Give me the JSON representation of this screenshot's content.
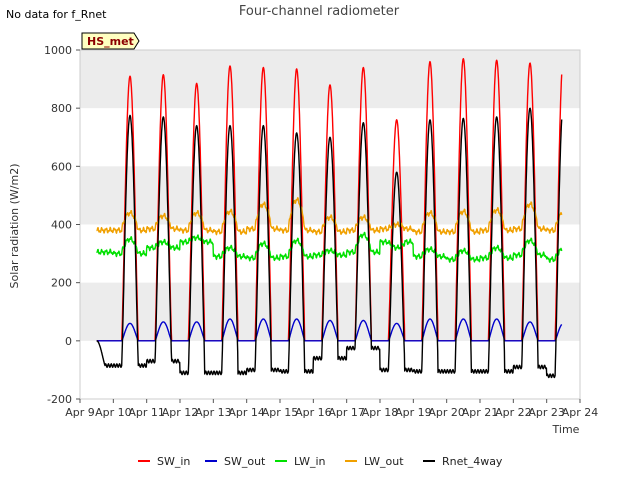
{
  "colors": {
    "SW_in": "#ff0000",
    "SW_out": "#0000cc",
    "LW_in": "#00e000",
    "LW_out": "#f0a000",
    "Rnet_4way": "#000000",
    "band": "#ececec",
    "badge_fill": "#ffffc0",
    "badge_text": "#8b0000"
  },
  "chart_data": {
    "type": "line",
    "title": "Four-channel radiometer",
    "note_top_left": "No data for f_Rnet",
    "badge": "HS_met",
    "xlabel": "Time",
    "ylabel": "Solar radiation (W/m2)",
    "xlim": [
      9,
      24
    ],
    "ylim": [
      -200,
      1000
    ],
    "x_tick_labels": [
      "Apr 9",
      "Apr 10",
      "Apr 11",
      "Apr 12",
      "Apr 13",
      "Apr 14",
      "Apr 15",
      "Apr 16",
      "Apr 17",
      "Apr 18",
      "Apr 19",
      "Apr 20",
      "Apr 21",
      "Apr 22",
      "Apr 23",
      "Apr 24"
    ],
    "y_ticks": [
      -200,
      0,
      200,
      400,
      600,
      800,
      1000
    ],
    "grid": true,
    "legend_position": "bottom",
    "days": [
      9.5,
      10.5,
      11.5,
      12.5,
      13.5,
      14.5,
      15.5,
      16.5,
      17.5,
      18.5,
      19.5,
      20.5,
      21.5,
      22.5,
      23.5
    ],
    "series": [
      {
        "name": "SW_in",
        "kind": "sw_in",
        "daily_peak": [
          0,
          910,
          915,
          885,
          945,
          940,
          935,
          880,
          940,
          760,
          960,
          970,
          965,
          955,
          975
        ],
        "night": 0
      },
      {
        "name": "SW_out",
        "kind": "sw_out",
        "daily_peak": [
          0,
          60,
          65,
          65,
          75,
          75,
          75,
          70,
          70,
          60,
          75,
          75,
          75,
          65,
          60
        ],
        "night": 0
      },
      {
        "name": "LW_in",
        "kind": "lw",
        "daily_base": [
          305,
          300,
          320,
          340,
          290,
          285,
          290,
          295,
          305,
          340,
          290,
          280,
          285,
          295,
          280
        ],
        "daily_peak": [
          305,
          350,
          340,
          355,
          320,
          335,
          345,
          310,
          365,
          320,
          315,
          310,
          320,
          345,
          315
        ]
      },
      {
        "name": "LW_out",
        "kind": "lw",
        "daily_base": [
          380,
          380,
          385,
          380,
          375,
          385,
          380,
          375,
          380,
          385,
          375,
          375,
          380,
          385,
          380
        ],
        "daily_peak": [
          380,
          440,
          430,
          440,
          445,
          470,
          485,
          425,
          425,
          400,
          440,
          445,
          450,
          470,
          440
        ]
      },
      {
        "name": "Rnet_4way",
        "kind": "rnet",
        "daily_peak": [
          0,
          775,
          770,
          740,
          740,
          740,
          715,
          700,
          750,
          580,
          760,
          765,
          770,
          800,
          815
        ],
        "night": [
          -85,
          -85,
          -70,
          -110,
          -110,
          -100,
          -105,
          -60,
          -25,
          -100,
          -105,
          -105,
          -105,
          -90,
          -120
        ]
      }
    ]
  }
}
